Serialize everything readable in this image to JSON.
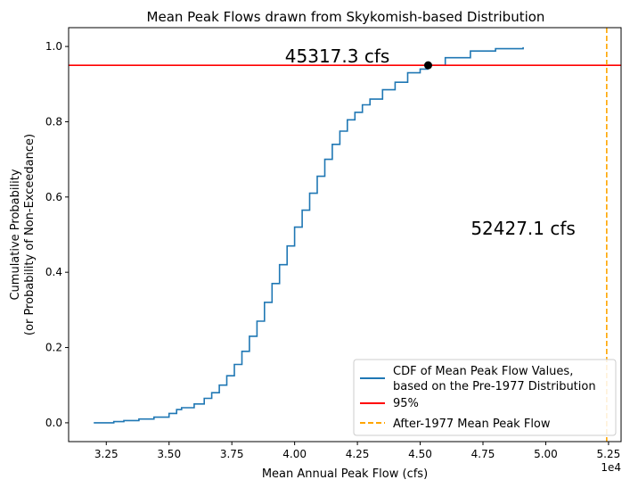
{
  "chart_data": {
    "type": "line",
    "title": "Mean Peak Flows drawn from Skykomish-based Distribution",
    "xlabel": "Mean Annual Peak Flow (cfs)",
    "ylabel_line1": "Cumulative Probability",
    "ylabel_line2": "(or Probability of Non-Exceedance)",
    "x_offset_label": "1e4",
    "xlim": [
      3.1,
      5.3
    ],
    "ylim": [
      -0.05,
      1.05
    ],
    "x_ticks": [
      3.25,
      3.5,
      3.75,
      4.0,
      4.25,
      4.5,
      4.75,
      5.0,
      5.25
    ],
    "x_tick_labels": [
      "3.25",
      "3.50",
      "3.75",
      "4.00",
      "4.25",
      "4.50",
      "4.75",
      "5.00",
      "5.25"
    ],
    "y_ticks": [
      0.0,
      0.2,
      0.4,
      0.6,
      0.8,
      1.0
    ],
    "y_tick_labels": [
      "0.0",
      "0.2",
      "0.4",
      "0.6",
      "0.8",
      "1.0"
    ],
    "grid": false,
    "legend_position": "lower-right",
    "series": [
      {
        "name": "CDF of Mean Peak Flow Values,\nbased on the Pre-1977 Distribution",
        "color": "#1f77b4",
        "x": [
          3.2,
          3.28,
          3.32,
          3.38,
          3.44,
          3.5,
          3.53,
          3.55,
          3.6,
          3.64,
          3.67,
          3.7,
          3.73,
          3.76,
          3.79,
          3.82,
          3.85,
          3.88,
          3.91,
          3.94,
          3.97,
          4.0,
          4.03,
          4.06,
          4.09,
          4.12,
          4.15,
          4.18,
          4.21,
          4.24,
          4.27,
          4.3,
          4.35,
          4.4,
          4.45,
          4.5,
          4.53,
          4.6,
          4.7,
          4.8,
          4.91
        ],
        "y": [
          0.0,
          0.003,
          0.006,
          0.01,
          0.015,
          0.025,
          0.035,
          0.04,
          0.05,
          0.065,
          0.08,
          0.1,
          0.125,
          0.155,
          0.19,
          0.23,
          0.27,
          0.32,
          0.37,
          0.42,
          0.47,
          0.52,
          0.565,
          0.61,
          0.655,
          0.7,
          0.74,
          0.775,
          0.805,
          0.825,
          0.845,
          0.86,
          0.885,
          0.905,
          0.93,
          0.94,
          0.95,
          0.97,
          0.988,
          0.994,
          0.998
        ]
      },
      {
        "name": "95%",
        "color": "#ff0000",
        "kind": "hline",
        "y": 0.95
      },
      {
        "name": "After-1977 Mean Peak Flow",
        "color": "#ffa500",
        "kind": "vline",
        "dashed": true,
        "x": 5.24271
      }
    ],
    "marker_point": {
      "x": 4.53173,
      "y": 0.95,
      "color": "#000000"
    },
    "annotations": [
      {
        "text": "45317.3 cfs",
        "x": 4.17,
        "y": 0.958
      },
      {
        "text": "52427.1 cfs",
        "x": 4.91,
        "y": 0.5
      }
    ]
  }
}
